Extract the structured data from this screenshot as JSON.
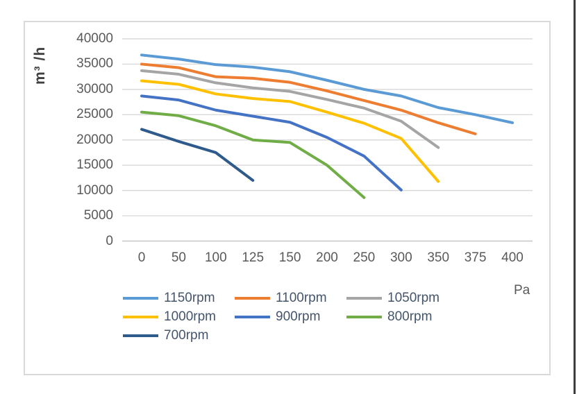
{
  "chart_data": {
    "type": "line",
    "title": "",
    "xlabel": "Pa",
    "ylabel": "m³ /h",
    "categories": [
      "0",
      "50",
      "100",
      "125",
      "150",
      "200",
      "250",
      "300",
      "350",
      "375",
      "400"
    ],
    "y_ticks": [
      0,
      5000,
      10000,
      15000,
      20000,
      25000,
      30000,
      35000,
      40000
    ],
    "ylim": [
      0,
      40000
    ],
    "grid": "horizontal-only",
    "legend_position": "bottom-left",
    "gridline_color": "#D9D9D9",
    "axis_line_color": "#C6C6C6",
    "tick_label_color": "#595959",
    "legend_text_color": "#44546A",
    "series": [
      {
        "name": "1150rpm",
        "color": "#5B9BD5",
        "values": [
          36800,
          36000,
          34900,
          34400,
          33500,
          31800,
          30000,
          28700,
          26400,
          25000,
          23400
        ]
      },
      {
        "name": "1100rpm",
        "color": "#ED7D31",
        "values": [
          35000,
          34300,
          32500,
          32200,
          31400,
          29700,
          27800,
          25900,
          23400,
          21200,
          null
        ]
      },
      {
        "name": "1050rpm",
        "color": "#A5A5A5",
        "values": [
          33700,
          33000,
          31300,
          30300,
          29600,
          28000,
          26300,
          23700,
          18500,
          null,
          null
        ]
      },
      {
        "name": "1000rpm",
        "color": "#FFC000",
        "values": [
          31700,
          31000,
          29100,
          28200,
          27600,
          25500,
          23300,
          20300,
          11800,
          null,
          null
        ]
      },
      {
        "name": "900rpm",
        "color": "#4472C4",
        "values": [
          28700,
          27900,
          25900,
          24700,
          23500,
          20500,
          16800,
          10100,
          null,
          null,
          null
        ]
      },
      {
        "name": "800rpm",
        "color": "#70AD47",
        "values": [
          25500,
          24800,
          22800,
          20000,
          19500,
          15000,
          8600,
          null,
          null,
          null,
          null
        ]
      },
      {
        "name": "700rpm",
        "color": "#2E5B8C",
        "values": [
          22100,
          19700,
          17500,
          12000,
          null,
          null,
          null,
          null,
          null,
          null,
          null
        ]
      }
    ]
  }
}
